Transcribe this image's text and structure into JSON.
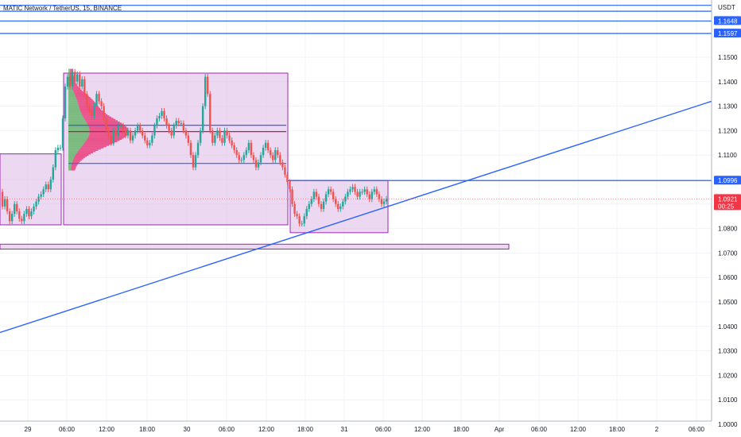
{
  "header": {
    "title": "MATIC Network / TetherUS, 15, BINANCE",
    "currency": "USDT"
  },
  "colors": {
    "up": "#26a69a",
    "down": "#ef5350",
    "line": "#2962ff",
    "zone_fill": "#e1bee7",
    "zone_stroke": "#9c27b0",
    "vp_up": "#4caf50",
    "vp_down": "#e91e63",
    "poc": "#c2185b",
    "price_badge": "#f23645"
  },
  "chart_data": {
    "type": "candlestick",
    "title": "MATIC Network / TetherUS, 15, BINANCE",
    "ylim": [
      0.995,
      1.175
    ],
    "y_ticks": [
      "1.0000",
      "1.0100",
      "1.0200",
      "1.0300",
      "1.0400",
      "1.0500",
      "1.0600",
      "1.0700",
      "1.0800",
      "1.0900",
      "1.1000",
      "1.1100",
      "1.1200",
      "1.1300",
      "1.1400",
      "1.1500"
    ],
    "x_ticks": [
      "29",
      "06:00",
      "12:00",
      "18:00",
      "30",
      "06:00",
      "12:00",
      "18:00",
      "31",
      "06:00",
      "12:00",
      "18:00",
      "Apr",
      "06:00",
      "12:00",
      "18:00",
      "2",
      "06:00"
    ],
    "price_labels": [
      {
        "value": "1.1648",
        "kind": "line"
      },
      {
        "value": "1.1597",
        "kind": "line"
      },
      {
        "value": "1.0996",
        "kind": "line"
      },
      {
        "value": "1.0921",
        "kind": "last",
        "countdown": "00:25"
      }
    ],
    "horizontal_lines": [
      1.1738,
      1.1712,
      1.1688,
      1.1648,
      1.1597,
      1.0996
    ],
    "trendline": {
      "from_price": 1.0375,
      "to_price": 1.132
    },
    "zones": [
      {
        "name": "left-demand-zone",
        "low": 1.0815,
        "high": 1.1105
      },
      {
        "name": "volume-profile-zone",
        "low": 1.0815,
        "high": 1.1435
      },
      {
        "name": "right-range-zone",
        "low": 1.0783,
        "high": 1.0996
      },
      {
        "name": "lower-support-zone",
        "low": 1.0716,
        "high": 1.0736
      }
    ],
    "profile_levels": {
      "vah": 1.1222,
      "poc": 1.1196,
      "val": 1.1066
    },
    "last_price": 1.0921,
    "candle_path": [
      [
        1.095,
        1.089,
        1.092,
        1.087,
        1.083,
        1.086,
        1.09,
        1.087,
        1.084,
        1.083,
        1.086,
        1.088,
        1.085,
        1.087,
        1.089,
        1.091,
        1.093,
        1.094,
        1.096,
        1.098,
        1.096,
        1.1,
        1.105,
        1.112,
        1.113
      ],
      [
        1.113,
        1.125,
        1.138,
        1.142,
        1.138,
        1.144,
        1.14,
        1.143,
        1.138,
        1.141,
        1.135,
        1.13,
        1.128,
        1.126,
        1.13,
        1.135,
        1.132,
        1.13,
        1.125,
        1.12,
        1.118,
        1.115,
        1.12,
        1.118,
        1.122
      ],
      [
        1.122,
        1.12,
        1.118,
        1.12,
        1.116,
        1.118,
        1.12,
        1.122,
        1.12,
        1.118,
        1.116,
        1.114,
        1.115,
        1.118,
        1.122,
        1.125,
        1.126,
        1.128,
        1.125,
        1.122,
        1.12,
        1.118,
        1.122,
        1.124,
        1.123
      ],
      [
        1.123,
        1.12,
        1.118,
        1.115,
        1.11,
        1.105,
        1.11,
        1.115,
        1.12,
        1.13,
        1.142,
        1.135,
        1.12,
        1.115,
        1.118,
        1.12,
        1.117,
        1.115,
        1.12,
        1.118,
        1.116,
        1.114,
        1.112,
        1.11,
        1.108
      ],
      [
        1.108,
        1.11,
        1.112,
        1.115,
        1.11,
        1.108,
        1.105,
        1.107,
        1.11,
        1.113,
        1.115,
        1.112,
        1.11,
        1.108,
        1.112,
        1.11,
        1.107,
        1.105,
        1.102,
        1.099,
        1.096,
        1.09,
        1.086,
        1.085,
        1.082
      ],
      [
        1.082,
        1.085,
        1.088,
        1.09,
        1.092,
        1.095,
        1.093,
        1.09,
        1.088,
        1.091,
        1.094,
        1.096,
        1.095,
        1.092,
        1.09,
        1.088,
        1.089,
        1.091,
        1.093,
        1.095,
        1.096,
        1.097,
        1.095,
        1.093,
        1.095
      ],
      [
        1.095,
        1.096,
        1.094,
        1.092,
        1.095,
        1.096,
        1.094,
        1.092,
        1.09,
        1.091,
        1.0921
      ]
    ]
  }
}
